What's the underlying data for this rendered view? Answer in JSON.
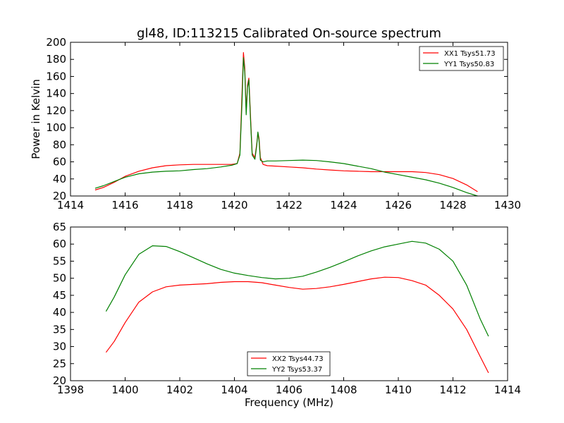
{
  "chart_data": [
    {
      "type": "line",
      "title": "gl48, ID:113215 Calibrated On-source spectrum",
      "xlabel": "",
      "ylabel": "Power in Kelvin",
      "xlim": [
        1414,
        1430
      ],
      "ylim": [
        20,
        200
      ],
      "xticks": [
        1414,
        1416,
        1418,
        1420,
        1422,
        1424,
        1426,
        1428,
        1430
      ],
      "yticks": [
        20,
        40,
        60,
        80,
        100,
        120,
        140,
        160,
        180,
        200
      ],
      "grid": false,
      "legend_position": "upper-right",
      "series": [
        {
          "name": "XX1 Tsys51.73",
          "color": "#ff0000",
          "points": [
            [
              1414.9,
              27
            ],
            [
              1415.2,
              30
            ],
            [
              1415.6,
              36
            ],
            [
              1416.0,
              43
            ],
            [
              1416.5,
              49
            ],
            [
              1417.0,
              53
            ],
            [
              1417.5,
              55.5
            ],
            [
              1418.0,
              56.5
            ],
            [
              1418.5,
              57
            ],
            [
              1419.0,
              57
            ],
            [
              1419.5,
              57
            ],
            [
              1419.9,
              57
            ],
            [
              1420.1,
              58
            ],
            [
              1420.2,
              70
            ],
            [
              1420.28,
              140
            ],
            [
              1420.33,
              188
            ],
            [
              1420.38,
              170
            ],
            [
              1420.43,
              120
            ],
            [
              1420.48,
              150
            ],
            [
              1420.53,
              158
            ],
            [
              1420.58,
              120
            ],
            [
              1420.65,
              70
            ],
            [
              1420.75,
              65
            ],
            [
              1420.82,
              82
            ],
            [
              1420.86,
              94
            ],
            [
              1420.9,
              88
            ],
            [
              1420.95,
              65
            ],
            [
              1421.05,
              57
            ],
            [
              1421.2,
              55.5
            ],
            [
              1421.5,
              55
            ],
            [
              1422.0,
              54
            ],
            [
              1422.5,
              53
            ],
            [
              1423.0,
              51.5
            ],
            [
              1423.5,
              50.5
            ],
            [
              1424.0,
              49.5
            ],
            [
              1424.5,
              49
            ],
            [
              1425.0,
              48.5
            ],
            [
              1425.5,
              48.5
            ],
            [
              1426.0,
              48.5
            ],
            [
              1426.5,
              48.5
            ],
            [
              1427.0,
              47.5
            ],
            [
              1427.5,
              45
            ],
            [
              1428.0,
              40.5
            ],
            [
              1428.5,
              33
            ],
            [
              1428.9,
              25
            ]
          ]
        },
        {
          "name": "YY1 Tsys50.83",
          "color": "#008000",
          "points": [
            [
              1414.9,
              29
            ],
            [
              1415.2,
              32
            ],
            [
              1415.6,
              37
            ],
            [
              1416.0,
              42
            ],
            [
              1416.5,
              46
            ],
            [
              1417.0,
              48
            ],
            [
              1417.5,
              49
            ],
            [
              1418.0,
              49.5
            ],
            [
              1418.5,
              51
            ],
            [
              1419.0,
              52
            ],
            [
              1419.5,
              54
            ],
            [
              1419.9,
              56
            ],
            [
              1420.1,
              58
            ],
            [
              1420.2,
              68
            ],
            [
              1420.28,
              130
            ],
            [
              1420.33,
              182
            ],
            [
              1420.38,
              165
            ],
            [
              1420.43,
              115
            ],
            [
              1420.48,
              147
            ],
            [
              1420.53,
              156
            ],
            [
              1420.58,
              115
            ],
            [
              1420.65,
              68
            ],
            [
              1420.75,
              63
            ],
            [
              1420.82,
              80
            ],
            [
              1420.86,
              95
            ],
            [
              1420.9,
              85
            ],
            [
              1420.95,
              62
            ],
            [
              1421.05,
              60
            ],
            [
              1421.2,
              61
            ],
            [
              1421.5,
              61
            ],
            [
              1422.0,
              61.5
            ],
            [
              1422.5,
              62
            ],
            [
              1423.0,
              61.5
            ],
            [
              1423.5,
              60
            ],
            [
              1424.0,
              58
            ],
            [
              1424.5,
              55
            ],
            [
              1425.0,
              52
            ],
            [
              1425.5,
              48
            ],
            [
              1426.0,
              45
            ],
            [
              1426.5,
              42
            ],
            [
              1427.0,
              39
            ],
            [
              1427.5,
              35
            ],
            [
              1428.0,
              30
            ],
            [
              1428.5,
              24
            ],
            [
              1428.9,
              20
            ]
          ]
        }
      ]
    },
    {
      "type": "line",
      "title": "",
      "xlabel": "Frequency (MHz)",
      "ylabel": "",
      "xlim": [
        1398,
        1414
      ],
      "ylim": [
        20,
        65
      ],
      "xticks": [
        1398,
        1400,
        1402,
        1404,
        1406,
        1408,
        1410,
        1412,
        1414
      ],
      "yticks": [
        20,
        25,
        30,
        35,
        40,
        45,
        50,
        55,
        60,
        65
      ],
      "grid": false,
      "legend_position": "lower-center",
      "series": [
        {
          "name": "XX2 Tsys44.73",
          "color": "#ff0000",
          "points": [
            [
              1399.3,
              28.3
            ],
            [
              1399.6,
              31.5
            ],
            [
              1400.0,
              37
            ],
            [
              1400.5,
              43
            ],
            [
              1401.0,
              46
            ],
            [
              1401.5,
              47.5
            ],
            [
              1402.0,
              48
            ],
            [
              1402.5,
              48.2
            ],
            [
              1403.0,
              48.4
            ],
            [
              1403.5,
              48.8
            ],
            [
              1404.0,
              49
            ],
            [
              1404.5,
              49
            ],
            [
              1405.0,
              48.7
            ],
            [
              1405.5,
              48
            ],
            [
              1406.0,
              47.3
            ],
            [
              1406.5,
              46.8
            ],
            [
              1407.0,
              47
            ],
            [
              1407.5,
              47.5
            ],
            [
              1408.0,
              48.2
            ],
            [
              1408.5,
              49
            ],
            [
              1409.0,
              49.8
            ],
            [
              1409.5,
              50.3
            ],
            [
              1410.0,
              50.2
            ],
            [
              1410.5,
              49.3
            ],
            [
              1411.0,
              48
            ],
            [
              1411.5,
              45
            ],
            [
              1412.0,
              41
            ],
            [
              1412.5,
              35
            ],
            [
              1413.0,
              27
            ],
            [
              1413.3,
              22.3
            ]
          ]
        },
        {
          "name": "YY2 Tsys53.37",
          "color": "#008000",
          "points": [
            [
              1399.3,
              40.3
            ],
            [
              1399.6,
              44.5
            ],
            [
              1400.0,
              51
            ],
            [
              1400.5,
              57
            ],
            [
              1401.0,
              59.5
            ],
            [
              1401.5,
              59.3
            ],
            [
              1402.0,
              57.8
            ],
            [
              1402.5,
              56
            ],
            [
              1403.0,
              54.2
            ],
            [
              1403.5,
              52.6
            ],
            [
              1404.0,
              51.5
            ],
            [
              1404.5,
              50.8
            ],
            [
              1405.0,
              50.2
            ],
            [
              1405.5,
              49.8
            ],
            [
              1406.0,
              50
            ],
            [
              1406.5,
              50.6
            ],
            [
              1407.0,
              51.8
            ],
            [
              1407.5,
              53.2
            ],
            [
              1408.0,
              54.8
            ],
            [
              1408.5,
              56.5
            ],
            [
              1409.0,
              58
            ],
            [
              1409.5,
              59.2
            ],
            [
              1410.0,
              60
            ],
            [
              1410.5,
              60.8
            ],
            [
              1411.0,
              60.3
            ],
            [
              1411.5,
              58.5
            ],
            [
              1412.0,
              55
            ],
            [
              1412.5,
              48
            ],
            [
              1413.0,
              38
            ],
            [
              1413.3,
              33
            ]
          ]
        }
      ]
    }
  ]
}
